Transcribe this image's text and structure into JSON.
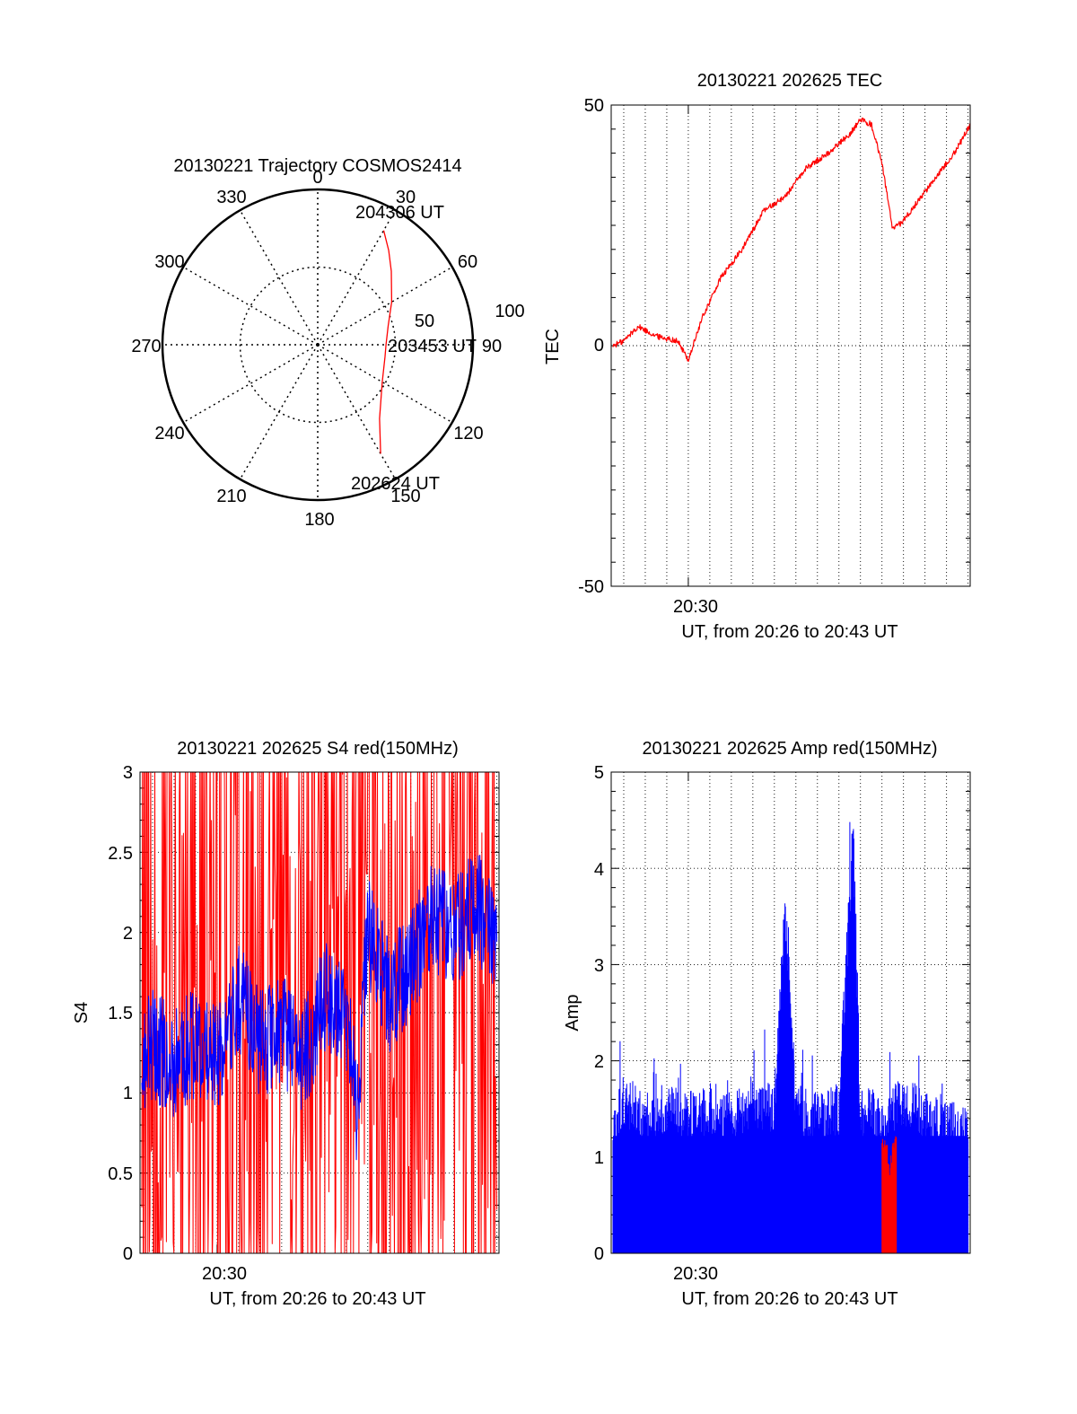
{
  "chart_data": [
    {
      "type": "polar",
      "title": "20130221 Trajectory COSMOS2414",
      "angle_labels": [
        "0",
        "30",
        "60",
        "90",
        "120",
        "150",
        "180",
        "210",
        "240",
        "270",
        "300",
        "330"
      ],
      "radius_labels": [
        "50",
        "100"
      ],
      "rlim": [
        0,
        100
      ],
      "series": [
        {
          "color": "#ff0000",
          "points": [
            {
              "az": 150,
              "r": 81
            },
            {
              "az": 140,
              "r": 62
            },
            {
              "az": 120,
              "r": 48
            },
            {
              "az": 100,
              "r": 44
            },
            {
              "az": 90,
              "r": 44
            },
            {
              "az": 75,
              "r": 47
            },
            {
              "az": 60,
              "r": 55
            },
            {
              "az": 45,
              "r": 67
            },
            {
              "az": 37,
              "r": 76
            },
            {
              "az": 30,
              "r": 85
            }
          ]
        }
      ],
      "annotations": [
        {
          "text": "204306 UT",
          "az": 30,
          "r": 85
        },
        {
          "text": "203453 UT",
          "az": 90,
          "r": 44
        },
        {
          "text": "202624 UT",
          "az": 150,
          "r": 81
        }
      ]
    },
    {
      "type": "line",
      "title": "20130221 202625 TEC",
      "xlabel": "UT, from 20:26 to 20:43 UT",
      "ylabel": "TEC",
      "xlim": [
        "20:26:25",
        "20:43:06"
      ],
      "ylim": [
        -50,
        50
      ],
      "xticks": [
        "20:30"
      ],
      "yticks": [
        "-50",
        "0",
        "50"
      ],
      "grid": true,
      "series": [
        {
          "color": "#ff0000",
          "x": [
            "20:26:30",
            "20:27:00",
            "20:27:40",
            "20:28:30",
            "20:29:30",
            "20:30:00",
            "20:30:40",
            "20:31:30",
            "20:32:30",
            "20:33:30",
            "20:34:30",
            "20:35:30",
            "20:36:30",
            "20:37:30",
            "20:38:00",
            "20:38:30",
            "20:39:00",
            "20:39:30",
            "20:40:00",
            "20:40:30",
            "20:41:30",
            "20:42:30",
            "20:43:06"
          ],
          "values": [
            0,
            1,
            4,
            2,
            1,
            -3,
            6,
            14,
            20,
            28,
            31,
            37,
            40,
            44,
            47,
            46,
            38,
            24,
            26,
            29,
            35,
            41,
            46
          ]
        }
      ]
    },
    {
      "type": "line",
      "title": "20130221 202625 S4 red(150MHz)",
      "xlabel": "UT, from 20:26 to 20:43 UT",
      "ylabel": "S4",
      "xlim": [
        "20:26:25",
        "20:43:06"
      ],
      "ylim": [
        0,
        3
      ],
      "xticks": [
        "20:30"
      ],
      "yticks": [
        "0",
        "0.5",
        "1",
        "1.5",
        "2",
        "2.5",
        "3"
      ],
      "grid": true,
      "series": [
        {
          "color": "#ff0000",
          "x": [
            "20:26:30",
            "20:28:00",
            "20:29:00",
            "20:30:00",
            "20:31:00",
            "20:32:00",
            "20:33:00",
            "20:34:00",
            "20:35:00",
            "20:36:00",
            "20:37:00",
            "20:38:00",
            "20:38:30",
            "20:39:00",
            "20:40:00",
            "20:41:00",
            "20:42:00",
            "20:43:00"
          ],
          "values": [
            1.5,
            2.5,
            1.8,
            1.5,
            2.8,
            0.8,
            2.5,
            1.2,
            2.9,
            1.8,
            2.6,
            0.9,
            0.25,
            0.4,
            2.0,
            2.9,
            1.6,
            2.6
          ]
        },
        {
          "color": "#0000ff",
          "x": [
            "20:26:30",
            "20:27:00",
            "20:28:00",
            "20:29:00",
            "20:30:00",
            "20:31:00",
            "20:32:00",
            "20:33:00",
            "20:34:00",
            "20:35:00",
            "20:36:00",
            "20:36:30",
            "20:37:00",
            "20:38:00",
            "20:39:00",
            "20:40:00",
            "20:41:00",
            "20:42:00",
            "20:43:00"
          ],
          "values": [
            1.2,
            1.3,
            1.2,
            1.3,
            1.2,
            1.6,
            1.3,
            1.4,
            1.2,
            1.6,
            1.5,
            0.9,
            2.0,
            1.6,
            1.8,
            2.1,
            2.0,
            2.2,
            1.9
          ]
        }
      ]
    },
    {
      "type": "bar",
      "title": "20130221 202625 Amp red(150MHz)",
      "xlabel": "UT, from 20:26 to 20:43 UT",
      "ylabel": "Amp",
      "xlim": [
        "20:26:25",
        "20:43:06"
      ],
      "ylim": [
        0,
        5
      ],
      "xticks": [
        "20:30"
      ],
      "yticks": [
        "0",
        "1",
        "2",
        "3",
        "4",
        "5"
      ],
      "grid": true,
      "series": [
        {
          "color": "#0000ff",
          "x": [
            "20:26:30",
            "20:27:00",
            "20:28:00",
            "20:29:00",
            "20:30:00",
            "20:31:00",
            "20:32:00",
            "20:33:00",
            "20:34:00",
            "20:34:30",
            "20:35:00",
            "20:36:00",
            "20:37:00",
            "20:37:40",
            "20:38:00",
            "20:38:30",
            "20:39:00",
            "20:40:00",
            "20:41:00",
            "20:42:00",
            "20:43:00"
          ],
          "values": [
            1.3,
            1.6,
            1.4,
            1.5,
            1.4,
            1.5,
            1.4,
            1.6,
            1.5,
            3.6,
            1.5,
            1.4,
            1.5,
            4.4,
            1.4,
            1.5,
            1.3,
            1.6,
            1.4,
            1.3,
            1.3
          ]
        },
        {
          "color": "#ff0000",
          "x": [
            "20:39:00",
            "20:39:20",
            "20:39:40"
          ],
          "values": [
            1.2,
            0.9,
            1.1
          ]
        }
      ]
    }
  ]
}
